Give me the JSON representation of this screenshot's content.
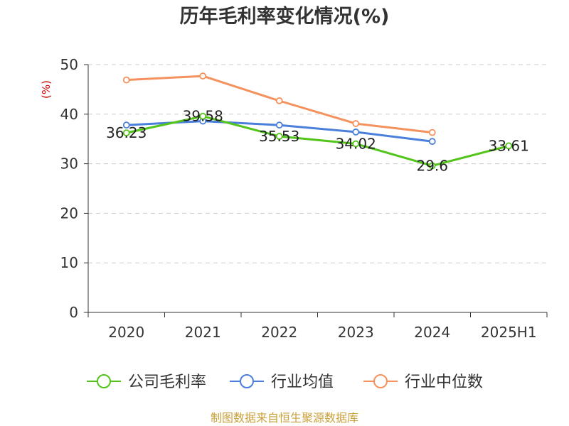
{
  "chart_data": {
    "type": "line",
    "title": "历年毛利率变化情况(%)",
    "ylabel": "(%)",
    "categories": [
      "2020",
      "2021",
      "2022",
      "2023",
      "2024",
      "2025H1"
    ],
    "ylim": [
      0,
      50
    ],
    "yticks": [
      0,
      10,
      20,
      30,
      40,
      50
    ],
    "grid": true,
    "legend_position": "bottom",
    "series": [
      {
        "name": "公司毛利率",
        "color": "#52c41a",
        "values": [
          36.23,
          39.58,
          35.53,
          34.02,
          29.6,
          33.61
        ],
        "labels": [
          "36.23",
          "39.58",
          "35.53",
          "34.02",
          "29.6",
          "33.61"
        ],
        "show_labels": true
      },
      {
        "name": "行业均值",
        "color": "#4a7fdb",
        "values": [
          37.8,
          38.6,
          37.8,
          36.4,
          34.5,
          null
        ],
        "show_labels": false
      },
      {
        "name": "行业中位数",
        "color": "#f4915c",
        "values": [
          46.9,
          47.7,
          42.7,
          38.1,
          36.3,
          null
        ],
        "show_labels": false
      }
    ]
  },
  "footer": {
    "source": "制图数据来自恒生聚源数据库"
  },
  "colors": {
    "title": "#333333",
    "ylabel": "#cc0000",
    "footer": "#c9a13a"
  }
}
